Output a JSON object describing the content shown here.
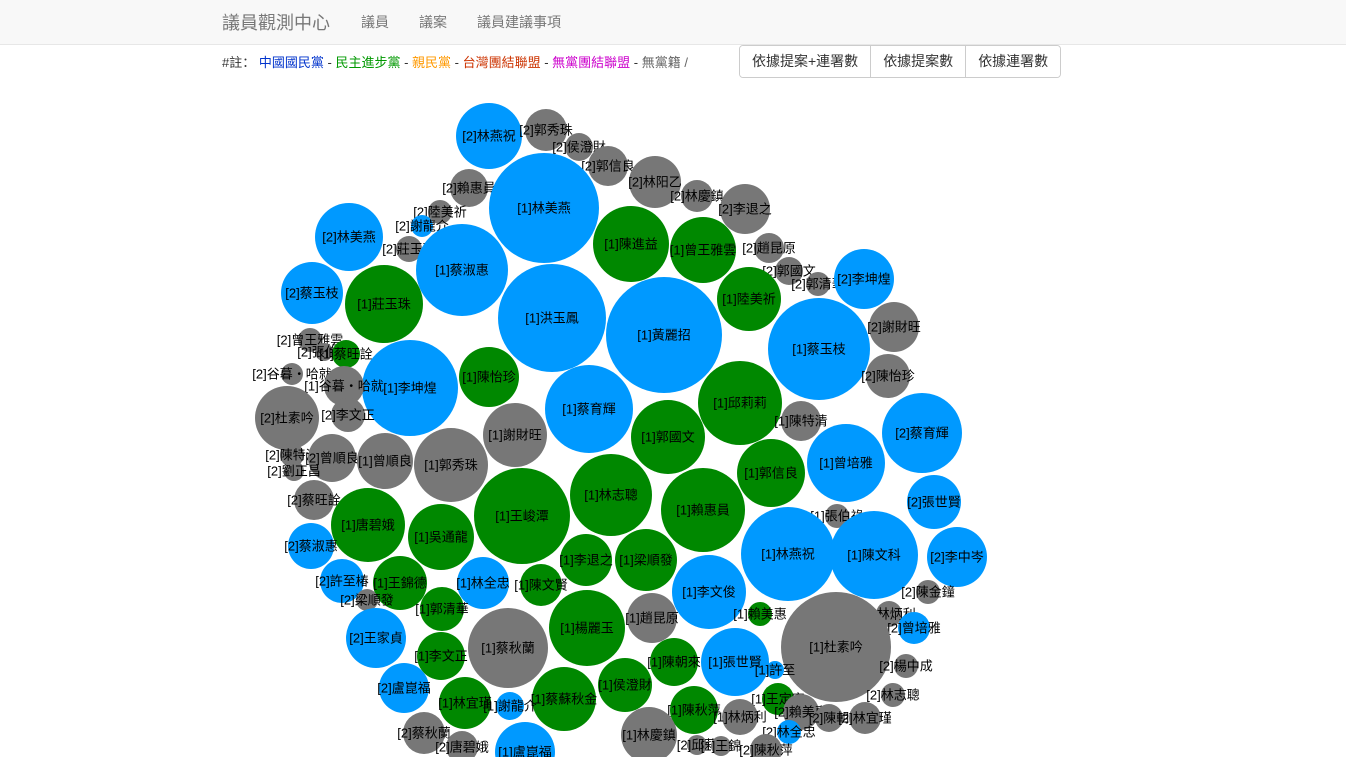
{
  "navbar": {
    "brand": "議員觀測中心",
    "links": [
      "議員",
      "議案",
      "議員建議事項"
    ]
  },
  "legend": {
    "prefix": "#註：",
    "separator": " - ",
    "parties": [
      {
        "name": "中國國民黨",
        "color": "#0033cc"
      },
      {
        "name": "民主進步黨",
        "color": "#009900"
      },
      {
        "name": "親民黨",
        "color": "#ff9900"
      },
      {
        "name": "台灣團結聯盟",
        "color": "#cc3300"
      },
      {
        "name": "無黨團結聯盟",
        "color": "#cc00cc"
      },
      {
        "name": "無黨籍 /",
        "color": "#666666"
      }
    ]
  },
  "sort_buttons": {
    "by_proposal_and_cosign": "依據提案+連署數",
    "by_proposal": "依據提案數",
    "by_cosign": "依據連署數"
  },
  "colors": {
    "kmt": "#0099ff",
    "dpp": "#008800",
    "other": "#777777"
  },
  "bubbles": [
    {
      "label": "[2]林燕祝",
      "party": "kmt"
    },
    {
      "label": "[2]郭秀珠",
      "party": "other"
    },
    {
      "label": "[2]侯澄財",
      "party": "other"
    },
    {
      "label": "[2]郭信良",
      "party": "other"
    },
    {
      "label": "[2]林阳乙",
      "party": "other"
    },
    {
      "label": "[2]賴惠員",
      "party": "other"
    },
    {
      "label": "[1]林美燕",
      "party": "kmt"
    },
    {
      "label": "[2]林慶鎮",
      "party": "other"
    },
    {
      "label": "[2]李退之",
      "party": "other"
    },
    {
      "label": "[2]陸美祈",
      "party": "other"
    },
    {
      "label": "[2]謝龍介",
      "party": "kmt"
    },
    {
      "label": "[2]林美燕",
      "party": "kmt"
    },
    {
      "label": "[2]莊玉珠",
      "party": "other"
    },
    {
      "label": "[1]陳進益",
      "party": "dpp"
    },
    {
      "label": "[1]曾王雅雲",
      "party": "dpp"
    },
    {
      "label": "[2]趙昆原",
      "party": "other"
    },
    {
      "label": "[1]蔡淑惠",
      "party": "kmt"
    },
    {
      "label": "[2]郭國文",
      "party": "other"
    },
    {
      "label": "[2]郭清華",
      "party": "other"
    },
    {
      "label": "[2]李坤煌",
      "party": "kmt"
    },
    {
      "label": "[2]蔡玉枝",
      "party": "kmt"
    },
    {
      "label": "[1]莊玉珠",
      "party": "dpp"
    },
    {
      "label": "[1]洪玉鳳",
      "party": "kmt"
    },
    {
      "label": "[1]黃麗招",
      "party": "kmt"
    },
    {
      "label": "[1]陸美祈",
      "party": "dpp"
    },
    {
      "label": "[2]謝財旺",
      "party": "other"
    },
    {
      "label": "[1]蔡玉枝",
      "party": "kmt"
    },
    {
      "label": "[2]曾王雅雲",
      "party": "other"
    },
    {
      "label": "[2]張伯祿",
      "party": "other"
    },
    {
      "label": "[1]蔡旺詮",
      "party": "dpp"
    },
    {
      "label": "[2]谷暮・哈就",
      "party": "other"
    },
    {
      "label": "[1]李坤煌",
      "party": "kmt"
    },
    {
      "label": "[1]谷暮・哈就",
      "party": "other"
    },
    {
      "label": "[1]陳怡珍",
      "party": "dpp"
    },
    {
      "label": "[2]陳怡珍",
      "party": "other"
    },
    {
      "label": "[2]杜素吟",
      "party": "other"
    },
    {
      "label": "[2]李文正",
      "party": "other"
    },
    {
      "label": "[1]蔡育輝",
      "party": "kmt"
    },
    {
      "label": "[1]邱莉莉",
      "party": "dpp"
    },
    {
      "label": "[1]謝財旺",
      "party": "other"
    },
    {
      "label": "[1]陳特清",
      "party": "other"
    },
    {
      "label": "[2]蔡育輝",
      "party": "kmt"
    },
    {
      "label": "[2]陳特清",
      "party": "other"
    },
    {
      "label": "[2]曾順良",
      "party": "other"
    },
    {
      "label": "[1]曾順良",
      "party": "other"
    },
    {
      "label": "[1]郭秀珠",
      "party": "other"
    },
    {
      "label": "[1]郭國文",
      "party": "dpp"
    },
    {
      "label": "[1]曾培雅",
      "party": "kmt"
    },
    {
      "label": "[2]劉正昌",
      "party": "other"
    },
    {
      "label": "[1]郭信良",
      "party": "dpp"
    },
    {
      "label": "[2]蔡旺詮",
      "party": "other"
    },
    {
      "label": "[1]林志聰",
      "party": "dpp"
    },
    {
      "label": "[2]張世賢",
      "party": "kmt"
    },
    {
      "label": "[1]唐碧娥",
      "party": "dpp"
    },
    {
      "label": "[1]王峻潭",
      "party": "dpp"
    },
    {
      "label": "[1]賴惠員",
      "party": "dpp"
    },
    {
      "label": "[1]張伯祿",
      "party": "other"
    },
    {
      "label": "[1]吳通龍",
      "party": "dpp"
    },
    {
      "label": "[2]蔡淑惠",
      "party": "kmt"
    },
    {
      "label": "[1]林燕祝",
      "party": "kmt"
    },
    {
      "label": "[1]陳文科",
      "party": "kmt"
    },
    {
      "label": "[2]李中岑",
      "party": "kmt"
    },
    {
      "label": "[1]李退之",
      "party": "dpp"
    },
    {
      "label": "[1]梁順發",
      "party": "dpp"
    },
    {
      "label": "[2]許至椿",
      "party": "kmt"
    },
    {
      "label": "[1]王錦德",
      "party": "dpp"
    },
    {
      "label": "[1]林全忠",
      "party": "kmt"
    },
    {
      "label": "[1]陳文賢",
      "party": "dpp"
    },
    {
      "label": "[1]李文俊",
      "party": "kmt"
    },
    {
      "label": "[2]陳金鐘",
      "party": "other"
    },
    {
      "label": "[2]梁順發",
      "party": "other"
    },
    {
      "label": "[1]郭清華",
      "party": "dpp"
    },
    {
      "label": "[1]趙昆原",
      "party": "other"
    },
    {
      "label": "[1]賴美惠",
      "party": "dpp"
    },
    {
      "label": "[2]林炳利",
      "party": "other"
    },
    {
      "label": "[2]王家貞",
      "party": "kmt"
    },
    {
      "label": "[1]蔡秋蘭",
      "party": "other"
    },
    {
      "label": "[1]楊麗玉",
      "party": "dpp"
    },
    {
      "label": "[2]曾培雅",
      "party": "kmt"
    },
    {
      "label": "[1]李文正",
      "party": "dpp"
    },
    {
      "label": "[1]陳朝來",
      "party": "dpp"
    },
    {
      "label": "[1]張世賢",
      "party": "kmt"
    },
    {
      "label": "[1]杜素吟",
      "party": "other"
    },
    {
      "label": "[2]楊中成",
      "party": "other"
    },
    {
      "label": "[1]許至",
      "party": "kmt"
    },
    {
      "label": "[2]盧崑福",
      "party": "kmt"
    },
    {
      "label": "[1]侯澄財",
      "party": "dpp"
    },
    {
      "label": "[1]林宜瑾",
      "party": "dpp"
    },
    {
      "label": "[1]蔡蘇秋金",
      "party": "dpp"
    },
    {
      "label": "[1]謝龍介",
      "party": "kmt"
    },
    {
      "label": "[1]王定宇",
      "party": "dpp"
    },
    {
      "label": "[2]林志聰",
      "party": "other"
    },
    {
      "label": "[1]陳秋萍",
      "party": "dpp"
    },
    {
      "label": "[1]林炳利",
      "party": "other"
    },
    {
      "label": "[2]賴美惠",
      "party": "other"
    },
    {
      "label": "[2]陳朝",
      "party": "other"
    },
    {
      "label": "[2]林宜瑾",
      "party": "other"
    },
    {
      "label": "[2]蔡秋蘭",
      "party": "other"
    },
    {
      "label": "[1]林慶鎮",
      "party": "other"
    },
    {
      "label": "[2]林全忠",
      "party": "kmt"
    },
    {
      "label": "[2]唐碧娥",
      "party": "other"
    },
    {
      "label": "[1]盧崑福",
      "party": "kmt"
    },
    {
      "label": "[2]邱莉",
      "party": "other"
    },
    {
      "label": "[1]王錦",
      "party": "other"
    },
    {
      "label": "[2]陳秋萍",
      "party": "other"
    }
  ]
}
